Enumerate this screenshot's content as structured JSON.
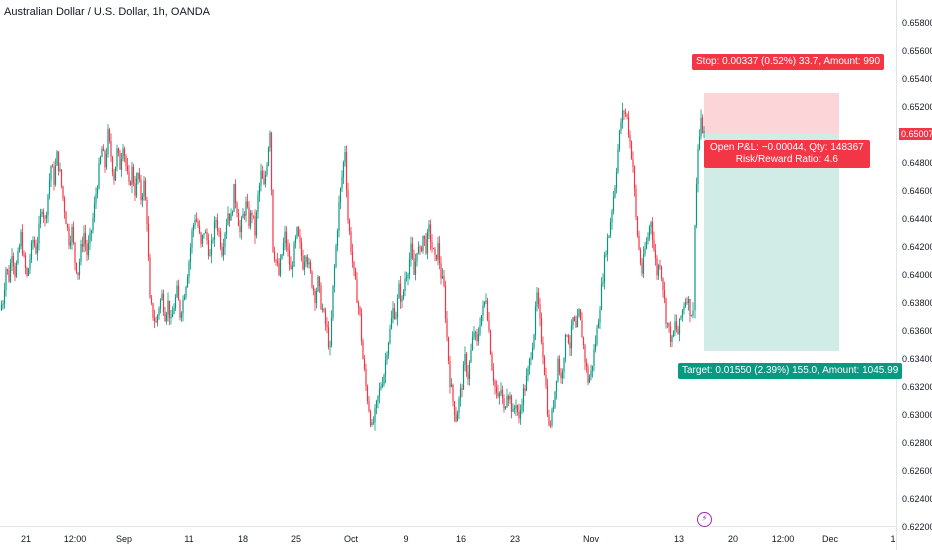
{
  "header": {
    "title": "Australian Dollar / U.S. Dollar, 1h, OANDA"
  },
  "chart_data": {
    "type": "candlestick",
    "title": "Australian Dollar / U.S. Dollar, 1h, OANDA",
    "ylim": [
      0.622,
      0.659
    ],
    "y_ticks": [
      "0.65800",
      "0.65600",
      "0.65400",
      "0.65200",
      "0.65007",
      "0.64800",
      "0.64600",
      "0.64400",
      "0.64200",
      "0.64000",
      "0.63800",
      "0.63600",
      "0.63400",
      "0.63200",
      "0.63000",
      "0.62800",
      "0.62600",
      "0.62400",
      "0.62200"
    ],
    "x_ticks": [
      "21",
      "12:00",
      "Sep",
      "11",
      "18",
      "25",
      "Oct",
      "9",
      "16",
      "23",
      "Nov",
      "13",
      "20",
      "12:00",
      "Dec",
      "1"
    ],
    "current_price": "0.65007",
    "price_path": [
      [
        0,
        0.6375
      ],
      [
        3,
        0.6382
      ],
      [
        6,
        0.6405
      ],
      [
        9,
        0.6398
      ],
      [
        12,
        0.6418
      ],
      [
        15,
        0.6402
      ],
      [
        18,
        0.6412
      ],
      [
        21,
        0.6428
      ],
      [
        24,
        0.641
      ],
      [
        27,
        0.6398
      ],
      [
        30,
        0.6412
      ],
      [
        33,
        0.6425
      ],
      [
        36,
        0.6418
      ],
      [
        39,
        0.6432
      ],
      [
        42,
        0.645
      ],
      [
        45,
        0.6438
      ],
      [
        48,
        0.6458
      ],
      [
        51,
        0.6478
      ],
      [
        54,
        0.6468
      ],
      [
        57,
        0.6485
      ],
      [
        60,
        0.6472
      ],
      [
        63,
        0.6455
      ],
      [
        66,
        0.644
      ],
      [
        69,
        0.6425
      ],
      [
        72,
        0.6432
      ],
      [
        75,
        0.641
      ],
      [
        78,
        0.6402
      ],
      [
        81,
        0.6418
      ],
      [
        84,
        0.643
      ],
      [
        87,
        0.6415
      ],
      [
        90,
        0.6425
      ],
      [
        93,
        0.644
      ],
      [
        96,
        0.6458
      ],
      [
        99,
        0.6475
      ],
      [
        102,
        0.649
      ],
      [
        105,
        0.6478
      ],
      [
        108,
        0.65
      ],
      [
        111,
        0.6485
      ],
      [
        114,
        0.647
      ],
      [
        117,
        0.6488
      ],
      [
        120,
        0.6478
      ],
      [
        123,
        0.6495
      ],
      [
        126,
        0.6478
      ],
      [
        129,
        0.6462
      ],
      [
        132,
        0.6475
      ],
      [
        135,
        0.646
      ],
      [
        138,
        0.6472
      ],
      [
        141,
        0.6455
      ],
      [
        144,
        0.6465
      ],
      [
        147,
        0.644
      ],
      [
        150,
        0.638
      ],
      [
        153,
        0.6372
      ],
      [
        156,
        0.6365
      ],
      [
        159,
        0.6378
      ],
      [
        162,
        0.6385
      ],
      [
        165,
        0.6372
      ],
      [
        168,
        0.638
      ],
      [
        171,
        0.6365
      ],
      [
        174,
        0.6378
      ],
      [
        177,
        0.6388
      ],
      [
        180,
        0.6372
      ],
      [
        183,
        0.6382
      ],
      [
        186,
        0.6395
      ],
      [
        189,
        0.641
      ],
      [
        192,
        0.643
      ],
      [
        195,
        0.6442
      ],
      [
        198,
        0.6435
      ],
      [
        201,
        0.642
      ],
      [
        204,
        0.6432
      ],
      [
        207,
        0.6425
      ],
      [
        210,
        0.6412
      ],
      [
        213,
        0.6428
      ],
      [
        216,
        0.644
      ],
      [
        219,
        0.643
      ],
      [
        222,
        0.6418
      ],
      [
        225,
        0.6432
      ],
      [
        228,
        0.6445
      ],
      [
        231,
        0.644
      ],
      [
        234,
        0.646
      ],
      [
        237,
        0.6448
      ],
      [
        240,
        0.643
      ],
      [
        243,
        0.6442
      ],
      [
        246,
        0.645
      ],
      [
        249,
        0.6438
      ],
      [
        252,
        0.6445
      ],
      [
        255,
        0.643
      ],
      [
        258,
        0.6455
      ],
      [
        261,
        0.6472
      ],
      [
        264,
        0.6462
      ],
      [
        267,
        0.6482
      ],
      [
        270,
        0.6505
      ],
      [
        273,
        0.642
      ],
      [
        276,
        0.641
      ],
      [
        279,
        0.64
      ],
      [
        282,
        0.6415
      ],
      [
        285,
        0.6428
      ],
      [
        288,
        0.6415
      ],
      [
        291,
        0.6402
      ],
      [
        294,
        0.6418
      ],
      [
        297,
        0.643
      ],
      [
        300,
        0.642
      ],
      [
        303,
        0.6408
      ],
      [
        306,
        0.6418
      ],
      [
        309,
        0.6405
      ],
      [
        312,
        0.6395
      ],
      [
        315,
        0.6385
      ],
      [
        318,
        0.6395
      ],
      [
        321,
        0.638
      ],
      [
        324,
        0.637
      ],
      [
        327,
        0.636
      ],
      [
        330,
        0.6345
      ],
      [
        333,
        0.639
      ],
      [
        336,
        0.642
      ],
      [
        339,
        0.645
      ],
      [
        342,
        0.647
      ],
      [
        345,
        0.649
      ],
      [
        348,
        0.644
      ],
      [
        351,
        0.642
      ],
      [
        354,
        0.64
      ],
      [
        357,
        0.6385
      ],
      [
        360,
        0.637
      ],
      [
        363,
        0.634
      ],
      [
        366,
        0.632
      ],
      [
        369,
        0.6305
      ],
      [
        372,
        0.629
      ],
      [
        375,
        0.63
      ],
      [
        378,
        0.6312
      ],
      [
        381,
        0.6322
      ],
      [
        384,
        0.633
      ],
      [
        387,
        0.6348
      ],
      [
        390,
        0.636
      ],
      [
        393,
        0.6375
      ],
      [
        396,
        0.6372
      ],
      [
        399,
        0.639
      ],
      [
        402,
        0.638
      ],
      [
        405,
        0.6398
      ],
      [
        408,
        0.6405
      ],
      [
        411,
        0.6418
      ],
      [
        414,
        0.64
      ],
      [
        417,
        0.642
      ],
      [
        420,
        0.6415
      ],
      [
        423,
        0.6428
      ],
      [
        426,
        0.642
      ],
      [
        429,
        0.6432
      ],
      [
        432,
        0.642
      ],
      [
        435,
        0.641
      ],
      [
        438,
        0.642
      ],
      [
        441,
        0.64
      ],
      [
        444,
        0.639
      ],
      [
        447,
        0.6355
      ],
      [
        450,
        0.6325
      ],
      [
        453,
        0.631
      ],
      [
        456,
        0.6298
      ],
      [
        459,
        0.631
      ],
      [
        462,
        0.6322
      ],
      [
        465,
        0.634
      ],
      [
        468,
        0.6328
      ],
      [
        471,
        0.6345
      ],
      [
        474,
        0.636
      ],
      [
        477,
        0.635
      ],
      [
        480,
        0.6368
      ],
      [
        483,
        0.6375
      ],
      [
        486,
        0.6385
      ],
      [
        489,
        0.636
      ],
      [
        492,
        0.6335
      ],
      [
        495,
        0.632
      ],
      [
        498,
        0.631
      ],
      [
        501,
        0.6318
      ],
      [
        504,
        0.6302
      ],
      [
        507,
        0.6318
      ],
      [
        510,
        0.6312
      ],
      [
        513,
        0.63
      ],
      [
        516,
        0.631
      ],
      [
        519,
        0.6295
      ],
      [
        522,
        0.6312
      ],
      [
        525,
        0.632
      ],
      [
        528,
        0.633
      ],
      [
        531,
        0.6345
      ],
      [
        534,
        0.636
      ],
      [
        537,
        0.6385
      ],
      [
        540,
        0.6365
      ],
      [
        543,
        0.6345
      ],
      [
        546,
        0.632
      ],
      [
        549,
        0.629
      ],
      [
        552,
        0.63
      ],
      [
        555,
        0.6318
      ],
      [
        558,
        0.634
      ],
      [
        561,
        0.6325
      ],
      [
        564,
        0.6345
      ],
      [
        567,
        0.636
      ],
      [
        570,
        0.635
      ],
      [
        573,
        0.6368
      ],
      [
        576,
        0.636
      ],
      [
        579,
        0.6372
      ],
      [
        582,
        0.6358
      ],
      [
        585,
        0.634
      ],
      [
        588,
        0.6325
      ],
      [
        591,
        0.633
      ],
      [
        594,
        0.6345
      ],
      [
        597,
        0.636
      ],
      [
        600,
        0.638
      ],
      [
        603,
        0.64
      ],
      [
        606,
        0.642
      ],
      [
        609,
        0.643
      ],
      [
        612,
        0.6448
      ],
      [
        615,
        0.6465
      ],
      [
        618,
        0.649
      ],
      [
        621,
        0.651
      ],
      [
        624,
        0.6518
      ],
      [
        627,
        0.6512
      ],
      [
        630,
        0.6495
      ],
      [
        633,
        0.6478
      ],
      [
        636,
        0.644
      ],
      [
        639,
        0.6418
      ],
      [
        642,
        0.6402
      ],
      [
        645,
        0.6418
      ],
      [
        648,
        0.6428
      ],
      [
        651,
        0.644
      ],
      [
        654,
        0.6418
      ],
      [
        657,
        0.6402
      ],
      [
        660,
        0.641
      ],
      [
        663,
        0.6392
      ],
      [
        666,
        0.637
      ],
      [
        669,
        0.636
      ],
      [
        672,
        0.6352
      ],
      [
        675,
        0.6365
      ],
      [
        678,
        0.6358
      ],
      [
        681,
        0.637
      ],
      [
        684,
        0.638
      ],
      [
        687,
        0.6385
      ],
      [
        690,
        0.6375
      ],
      [
        693,
        0.6372
      ],
      [
        695,
        0.644
      ],
      [
        698,
        0.649
      ],
      [
        701,
        0.6508
      ],
      [
        704,
        0.6501
      ]
    ],
    "position": {
      "entry": 0.65007,
      "stop": 0.653,
      "target": 0.63457,
      "stop_label": "Stop: 0.00337 (0.52%) 33.7, Amount: 990",
      "pnl_label": "Open P&L: −0.00044, Qty: 148367",
      "rr_label": "Risk/Reward Ratio: 4.6",
      "target_label": "Target: 0.01550 (2.39%) 155.0, Amount: 1045.99"
    },
    "colors": {
      "up": "#089981",
      "down": "#f23645",
      "stop_zone": "#fbd5d8",
      "target_zone": "#d1ece6",
      "grid": "#e0e3eb",
      "text": "#131722",
      "event": "#9c27b0"
    }
  },
  "event_icon": "lightning-bolt-icon"
}
